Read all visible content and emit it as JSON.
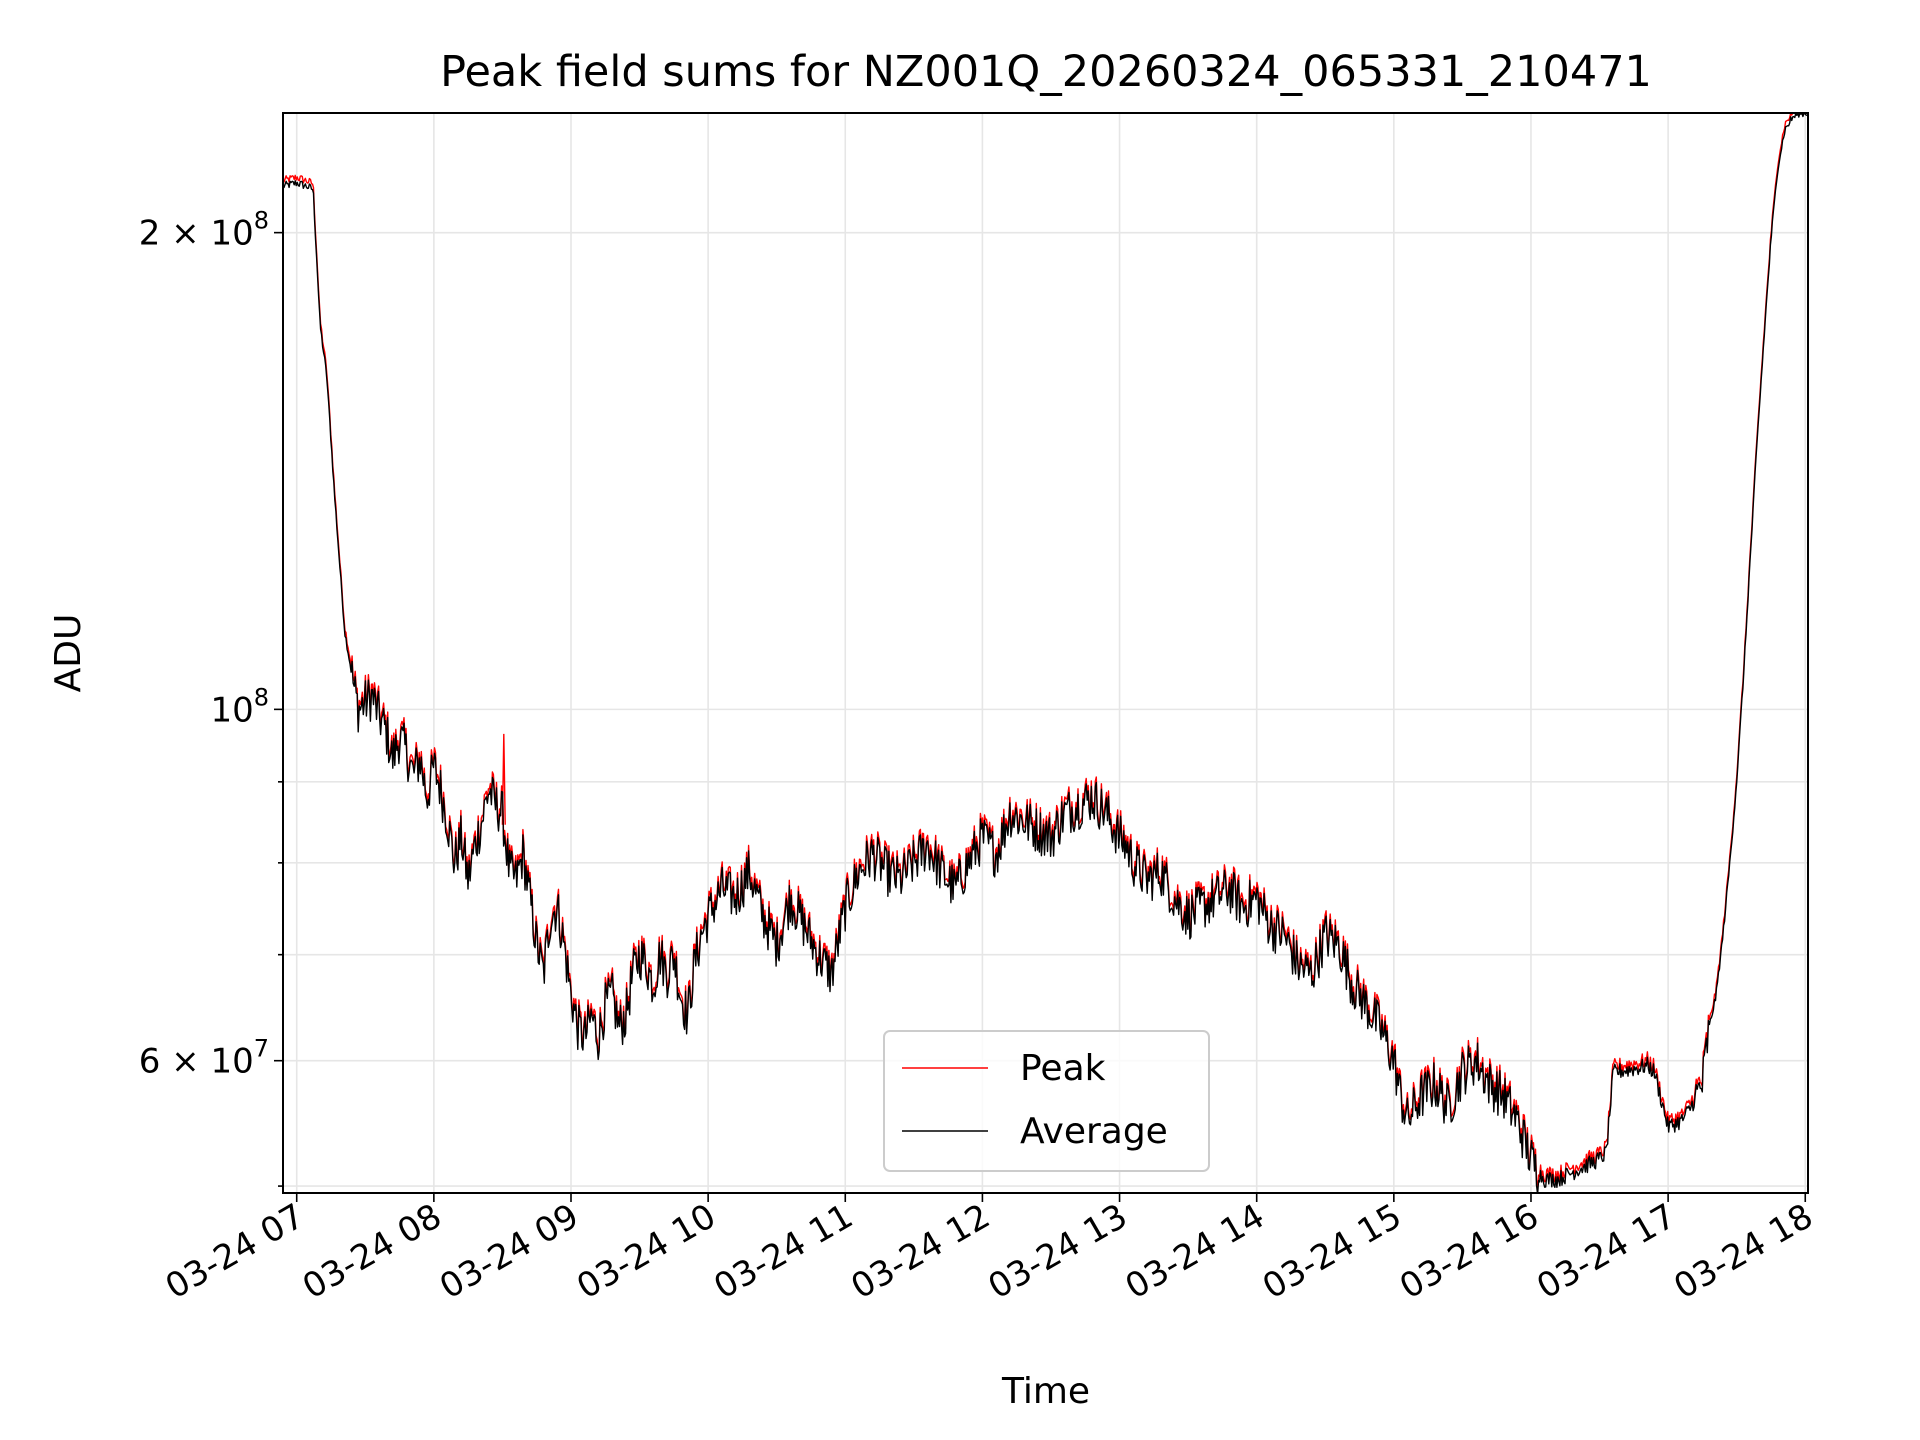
{
  "chart_data": {
    "type": "line",
    "title": "Peak field sums for NZ001Q_20260324_065331_210471",
    "xlabel": "Time",
    "ylabel": "ADU",
    "yscale": "log",
    "ylim": [
      49500000,
      238000000
    ],
    "xlim": [
      6.9,
      18.02
    ],
    "grid": true,
    "legend_position": "lower-center",
    "x_tick_labels": [
      {
        "value": 7,
        "label": "03-24 07"
      },
      {
        "value": 8,
        "label": "03-24 08"
      },
      {
        "value": 9,
        "label": "03-24 09"
      },
      {
        "value": 10,
        "label": "03-24 10"
      },
      {
        "value": 11,
        "label": "03-24 11"
      },
      {
        "value": 12,
        "label": "03-24 12"
      },
      {
        "value": 13,
        "label": "03-24 13"
      },
      {
        "value": 14,
        "label": "03-24 14"
      },
      {
        "value": 15,
        "label": "03-24 15"
      },
      {
        "value": 16,
        "label": "03-24 16"
      },
      {
        "value": 17,
        "label": "03-24 17"
      },
      {
        "value": 18,
        "label": "03-24 18"
      }
    ],
    "y_major_ticks": [
      {
        "value": 60000000,
        "base": "6 × 10",
        "exp": "7"
      },
      {
        "value": 100000000,
        "base": "10",
        "exp": "8"
      },
      {
        "value": 200000000,
        "base": "2 × 10",
        "exp": "8"
      }
    ],
    "y_minor_ticks": [
      50000000,
      70000000,
      80000000,
      90000000
    ],
    "series": [
      {
        "name": "Peak",
        "color": "#ff0000",
        "offset_factor": 1.008,
        "spike": {
          "x": 8.51,
          "y": 96500000
        }
      },
      {
        "name": "Average",
        "color": "#000000",
        "offset_factor": 1.0
      }
    ],
    "base_curve": {
      "x": [
        6.9,
        7.0,
        7.07,
        7.12,
        7.17,
        7.22,
        7.28,
        7.35,
        7.42,
        7.45,
        7.5,
        7.55,
        7.6,
        7.65,
        7.7,
        7.75,
        7.8,
        7.85,
        7.9,
        7.95,
        8.0,
        8.05,
        8.1,
        8.15,
        8.2,
        8.25,
        8.3,
        8.35,
        8.4,
        8.45,
        8.5,
        8.55,
        8.6,
        8.65,
        8.7,
        8.75,
        8.8,
        8.85,
        8.9,
        8.95,
        9.0,
        9.05,
        9.1,
        9.15,
        9.2,
        9.25,
        9.3,
        9.35,
        9.4,
        9.45,
        9.5,
        9.55,
        9.6,
        9.65,
        9.7,
        9.75,
        9.8,
        9.85,
        9.9,
        9.95,
        10.0,
        10.1,
        10.2,
        10.3,
        10.4,
        10.5,
        10.6,
        10.7,
        10.8,
        10.9,
        11.0,
        11.1,
        11.2,
        11.3,
        11.4,
        11.5,
        11.6,
        11.7,
        11.8,
        11.9,
        12.0,
        12.1,
        12.2,
        12.3,
        12.4,
        12.5,
        12.6,
        12.7,
        12.8,
        12.9,
        13.0,
        13.05,
        13.1,
        13.2,
        13.3,
        13.4,
        13.5,
        13.6,
        13.7,
        13.8,
        13.9,
        14.0,
        14.1,
        14.2,
        14.3,
        14.4,
        14.5,
        14.6,
        14.7,
        14.8,
        14.9,
        15.0,
        15.05,
        15.1,
        15.2,
        15.3,
        15.4,
        15.5,
        15.6,
        15.7,
        15.8,
        15.9,
        16.0,
        16.05,
        16.1,
        16.2,
        16.3,
        16.4,
        16.5,
        16.55,
        16.6,
        16.7,
        16.8,
        16.85,
        16.9,
        17.0,
        17.1,
        17.15,
        17.2,
        17.25,
        17.3,
        17.35,
        17.4,
        17.45,
        17.5,
        17.55,
        17.6,
        17.65,
        17.7,
        17.75,
        17.8,
        17.85,
        17.9,
        17.95,
        18.02
      ],
      "y": [
        214000000,
        215000000,
        214000000,
        213000000,
        175000000,
        162000000,
        135000000,
        112000000,
        103000000,
        100000000,
        101000000,
        102000000,
        99000000,
        97000000,
        93000000,
        96000000,
        94000000,
        91000000,
        93000000,
        88000000,
        92000000,
        89000000,
        85000000,
        80000000,
        83000000,
        78000000,
        82000000,
        85000000,
        89000000,
        87000000,
        86000000,
        79000000,
        78000000,
        81000000,
        76000000,
        71000000,
        68000000,
        74000000,
        75000000,
        71000000,
        66000000,
        63000000,
        62000000,
        64000000,
        62000000,
        65000000,
        66000000,
        63000000,
        64000000,
        68000000,
        70000000,
        69000000,
        67000000,
        70000000,
        68000000,
        70000000,
        66000000,
        64000000,
        69000000,
        72000000,
        74000000,
        77000000,
        76000000,
        79000000,
        74000000,
        71000000,
        76000000,
        73000000,
        70000000,
        68000000,
        75000000,
        79000000,
        81000000,
        79000000,
        78000000,
        80000000,
        82000000,
        79000000,
        77000000,
        80000000,
        83000000,
        81000000,
        86000000,
        85000000,
        84000000,
        83000000,
        86000000,
        87000000,
        88000000,
        86000000,
        83000000,
        82000000,
        80000000,
        78000000,
        79000000,
        76000000,
        74000000,
        75000000,
        76000000,
        77000000,
        75000000,
        76000000,
        73000000,
        72000000,
        69000000,
        68000000,
        72000000,
        71000000,
        67000000,
        65000000,
        63000000,
        60000000,
        57000000,
        55000000,
        57000000,
        58000000,
        56000000,
        59000000,
        60000000,
        58000000,
        57000000,
        55000000,
        52000000,
        51000000,
        50500000,
        50500000,
        51000000,
        51500000,
        52000000,
        52500000,
        59000000,
        59200000,
        59400000,
        59600000,
        59000000,
        54500000,
        55000000,
        55800000,
        56800000,
        58000000,
        63000000,
        66000000,
        72000000,
        80000000,
        90000000,
        105000000,
        125000000,
        148000000,
        172000000,
        198000000,
        220000000,
        232000000,
        236000000,
        238000000,
        238000000
      ]
    }
  }
}
